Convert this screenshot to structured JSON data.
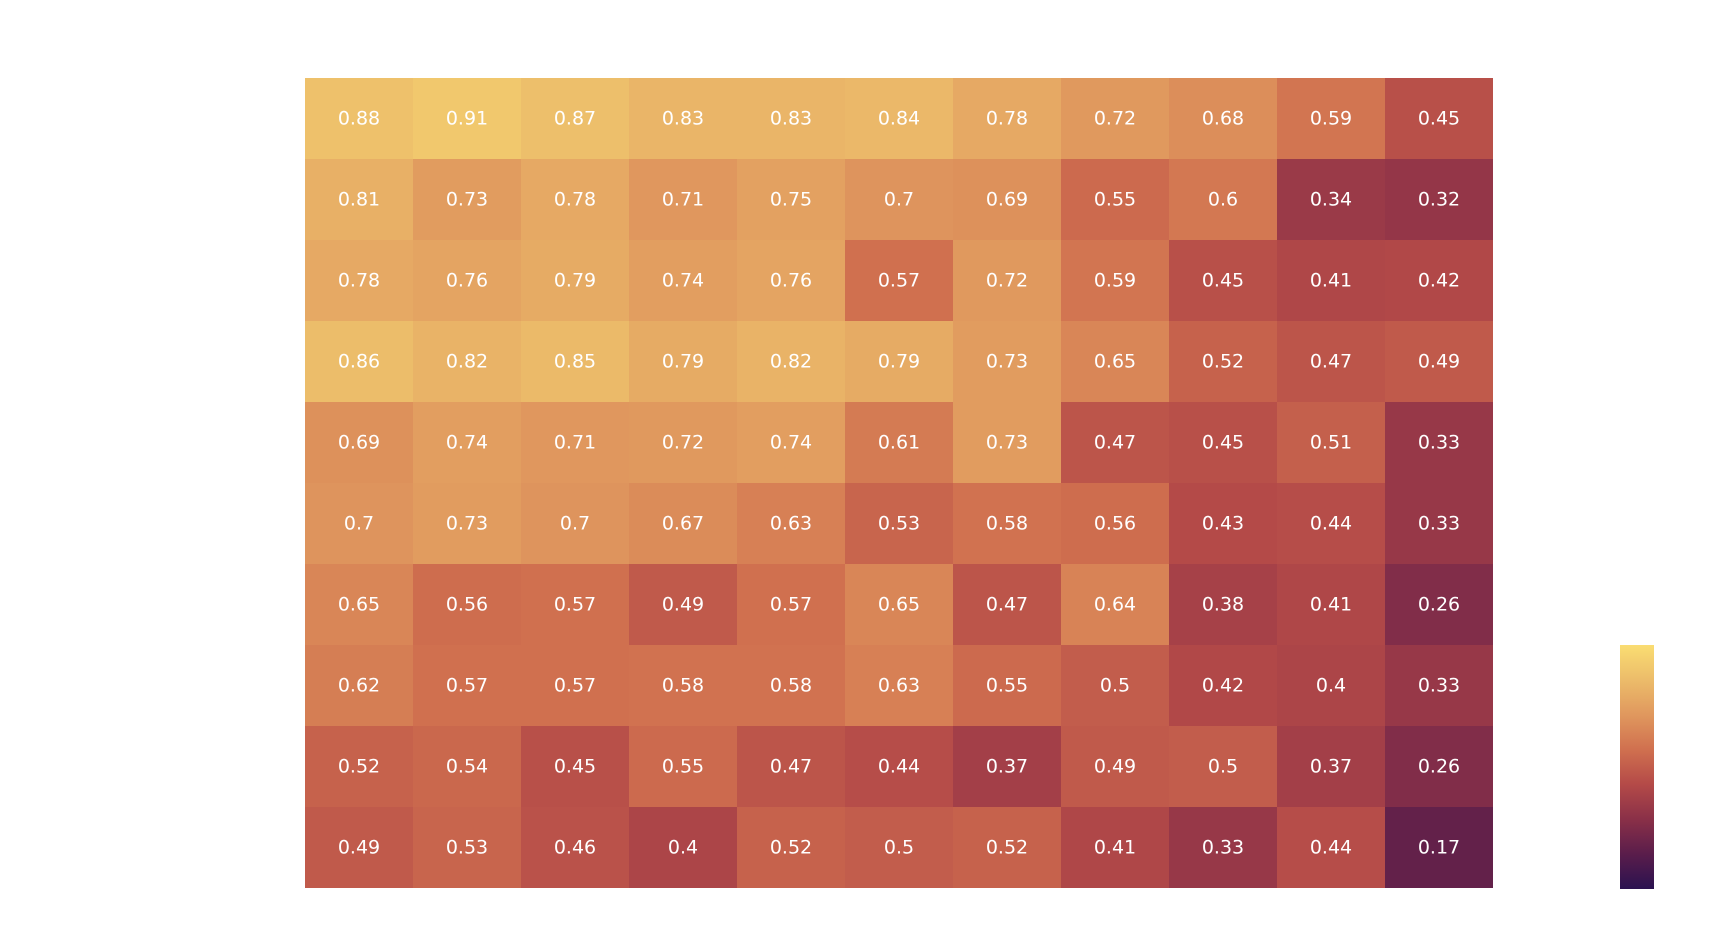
{
  "chart_data": {
    "type": "heatmap",
    "title": "",
    "xlabel": "",
    "ylabel": "",
    "rows": 10,
    "cols": 11,
    "values": [
      [
        0.88,
        0.91,
        0.87,
        0.83,
        0.83,
        0.84,
        0.78,
        0.72,
        0.68,
        0.59,
        0.45
      ],
      [
        0.81,
        0.73,
        0.78,
        0.71,
        0.75,
        0.7,
        0.69,
        0.55,
        0.6,
        0.34,
        0.32
      ],
      [
        0.78,
        0.76,
        0.79,
        0.74,
        0.76,
        0.57,
        0.72,
        0.59,
        0.45,
        0.41,
        0.42
      ],
      [
        0.86,
        0.82,
        0.85,
        0.79,
        0.82,
        0.79,
        0.73,
        0.65,
        0.52,
        0.47,
        0.49
      ],
      [
        0.69,
        0.74,
        0.71,
        0.72,
        0.74,
        0.61,
        0.73,
        0.47,
        0.45,
        0.51,
        0.33
      ],
      [
        0.7,
        0.73,
        0.7,
        0.67,
        0.63,
        0.53,
        0.58,
        0.56,
        0.43,
        0.44,
        0.33
      ],
      [
        0.65,
        0.56,
        0.57,
        0.49,
        0.57,
        0.65,
        0.47,
        0.64,
        0.38,
        0.41,
        0.26
      ],
      [
        0.62,
        0.57,
        0.57,
        0.58,
        0.58,
        0.63,
        0.55,
        0.5,
        0.42,
        0.4,
        0.33
      ],
      [
        0.52,
        0.54,
        0.45,
        0.55,
        0.47,
        0.44,
        0.37,
        0.49,
        0.5,
        0.37,
        0.26
      ],
      [
        0.49,
        0.53,
        0.46,
        0.4,
        0.52,
        0.5,
        0.52,
        0.41,
        0.33,
        0.44,
        0.17
      ]
    ],
    "labels": [
      [
        "0.88",
        "0.91",
        "0.87",
        "0.83",
        "0.83",
        "0.84",
        "0.78",
        "0.72",
        "0.68",
        "0.59",
        "0.45"
      ],
      [
        "0.81",
        "0.73",
        "0.78",
        "0.71",
        "0.75",
        "0.7",
        "0.69",
        "0.55",
        "0.6",
        "0.34",
        "0.32"
      ],
      [
        "0.78",
        "0.76",
        "0.79",
        "0.74",
        "0.76",
        "0.57",
        "0.72",
        "0.59",
        "0.45",
        "0.41",
        "0.42"
      ],
      [
        "0.86",
        "0.82",
        "0.85",
        "0.79",
        "0.82",
        "0.79",
        "0.73",
        "0.65",
        "0.52",
        "0.47",
        "0.49"
      ],
      [
        "0.69",
        "0.74",
        "0.71",
        "0.72",
        "0.74",
        "0.61",
        "0.73",
        "0.47",
        "0.45",
        "0.51",
        "0.33"
      ],
      [
        "0.7",
        "0.73",
        "0.7",
        "0.67",
        "0.63",
        "0.53",
        "0.58",
        "0.56",
        "0.43",
        "0.44",
        "0.33"
      ],
      [
        "0.65",
        "0.56",
        "0.57",
        "0.49",
        "0.57",
        "0.65",
        "0.47",
        "0.64",
        "0.38",
        "0.41",
        "0.26"
      ],
      [
        "0.62",
        "0.57",
        "0.57",
        "0.58",
        "0.58",
        "0.63",
        "0.55",
        "0.5",
        "0.42",
        "0.4",
        "0.33"
      ],
      [
        "0.52",
        "0.54",
        "0.45",
        "0.55",
        "0.47",
        "0.44",
        "0.37",
        "0.49",
        "0.5",
        "0.37",
        "0.26"
      ],
      [
        "0.49",
        "0.53",
        "0.46",
        "0.4",
        "0.52",
        "0.5",
        "0.52",
        "0.41",
        "0.33",
        "0.44",
        "0.17"
      ]
    ],
    "color_scale": {
      "domain": [
        0.0,
        1.0
      ],
      "stops": [
        "#2b1250",
        "#5a1d4b",
        "#8a3048",
        "#b44a48",
        "#d0704f",
        "#e0985e",
        "#ecbc6a",
        "#fadd72"
      ]
    },
    "colorbar": {
      "visible": true,
      "tick_labels": false,
      "placement": "right"
    },
    "cell_text_color": "#ffffff",
    "grid": false
  }
}
